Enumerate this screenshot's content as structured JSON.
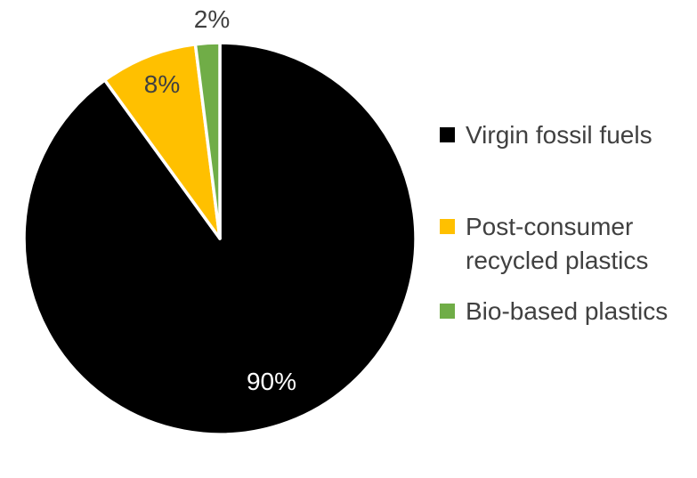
{
  "chart_data": {
    "type": "pie",
    "title": "",
    "labels": [
      "Virgin fossil fuels",
      "Post-consumer recycled plastics",
      "Bio-based plastics"
    ],
    "values": [
      90,
      8,
      2
    ],
    "colors": [
      "#000000",
      "#FFC000",
      "#70AD47"
    ],
    "data_labels": [
      "90%",
      "8%",
      "2%"
    ],
    "data_label_colors": [
      "#ffffff",
      "#404040",
      "#404040"
    ],
    "slice_border_color": "#ffffff",
    "start_angle_deg": 0,
    "direction": "clockwise",
    "legend_position": "right",
    "background_color": "#ffffff"
  }
}
